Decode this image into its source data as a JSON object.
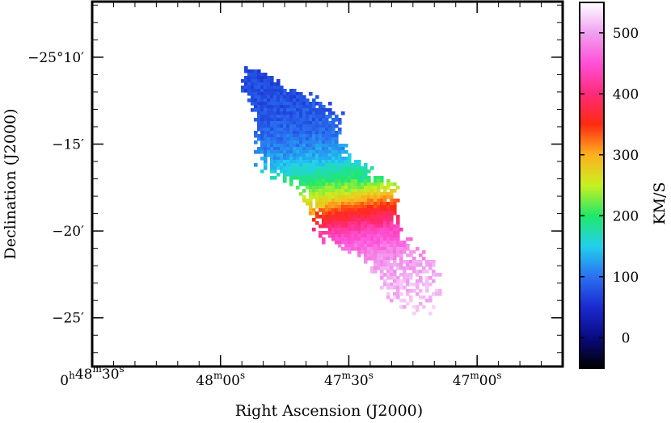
{
  "chart_data": {
    "type": "heatmap",
    "title": "",
    "xlabel": "Right Ascension (J2000)",
    "ylabel": "Declination (J2000)",
    "colorbar_label": "KM/S",
    "x_ticks": [
      {
        "h": "0",
        "m": "48",
        "s": "30",
        "ra_sec": 2910
      },
      {
        "h": "",
        "m": "48",
        "s": "00",
        "ra_sec": 2880
      },
      {
        "h": "",
        "m": "47",
        "s": "30",
        "ra_sec": 2850
      },
      {
        "h": "",
        "m": "47",
        "s": "00",
        "ra_sec": 2820
      }
    ],
    "xlim_ra_sec": [
      2910,
      2800
    ],
    "y_ticks": [
      {
        "label": "−25°10′",
        "dec_arcmin": -10
      },
      {
        "label": "−15′",
        "dec_arcmin": -15
      },
      {
        "label": "−20′",
        "dec_arcmin": -20
      },
      {
        "label": "−25′",
        "dec_arcmin": -25
      }
    ],
    "ylim_dec_arcmin": [
      -27.8,
      -6.8
    ],
    "colorbar": {
      "ticks": [
        "0",
        "100",
        "200",
        "300",
        "400",
        "500"
      ],
      "tick_values": [
        0,
        100,
        200,
        300,
        400,
        500
      ],
      "range": [
        -50,
        550
      ],
      "colormap": [
        "#000000",
        "#0a0a80",
        "#1a2ad0",
        "#2a70f0",
        "#22d0ee",
        "#20e86a",
        "#c8f020",
        "#ffb020",
        "#ff2a10",
        "#ff2a78",
        "#ff50d8",
        "#f0a0f0",
        "#ffffff"
      ]
    },
    "velocity_field": {
      "description_units": "km/s",
      "position_angle_deg": 52,
      "center_ra_sec": 2852,
      "center_dec_arcmin": -17.7,
      "systemic_velocity": 250,
      "velocity_min": 70,
      "velocity_max": 520,
      "major_extent_arcmin": 15.5,
      "minor_extent_arcmin": 4.0
    },
    "grid": false
  }
}
